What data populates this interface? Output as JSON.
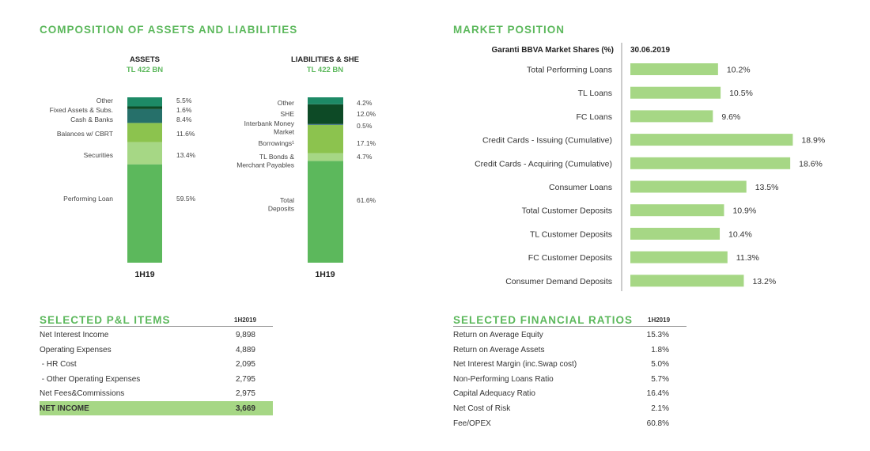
{
  "colors": {
    "accent_green": "#5cb85c",
    "light_green": "#a6d785",
    "mid_green": "#8cc34e",
    "dark_green": "#0d4a26",
    "teal": "#26706a",
    "sea_green": "#1d8a66",
    "steel": "#3a6f8a"
  },
  "titles": {
    "composition": "COMPOSITION OF ASSETS AND LIABILITIES",
    "market": "MARKET POSITION",
    "pl": "SELECTED P&L ITEMS",
    "ratios": "SELECTED FINANCIAL RATIOS"
  },
  "chart_data": [
    {
      "type": "bar",
      "stacked": true,
      "title": "ASSETS",
      "subtitle": "TL 422 BN",
      "categories": [
        "1H19"
      ],
      "series": [
        {
          "name": "Performing Loan",
          "values": [
            59.5
          ],
          "color": "#5cb85c"
        },
        {
          "name": "Securities",
          "values": [
            13.4
          ],
          "color": "#a6d785"
        },
        {
          "name": "Balances w/ CBRT",
          "values": [
            11.6
          ],
          "color": "#8cc34e"
        },
        {
          "name": "Cash & Banks",
          "values": [
            8.4
          ],
          "color": "#26706a"
        },
        {
          "name": "Fixed Assets & Subs.",
          "values": [
            1.6
          ],
          "color": "#0d4a26"
        },
        {
          "name": "Other",
          "values": [
            5.5
          ],
          "color": "#1d8a66"
        }
      ],
      "value_labels": [
        "59.5%",
        "13.4%",
        "11.6%",
        "8.4%",
        "1.6%",
        "5.5%"
      ]
    },
    {
      "type": "bar",
      "stacked": true,
      "title": "LIABILITIES & SHE",
      "subtitle": "TL 422 BN",
      "categories": [
        "1H19"
      ],
      "series": [
        {
          "name": "Total Deposits",
          "values": [
            61.6
          ],
          "color": "#5cb85c"
        },
        {
          "name": "TL Bonds & Merchant Payables",
          "values": [
            4.7
          ],
          "color": "#a6d785"
        },
        {
          "name": "Borrowings¹",
          "values": [
            17.1
          ],
          "color": "#8cc34e"
        },
        {
          "name": "Interbank Money Market",
          "values": [
            0.5
          ],
          "color": "#3a6f8a"
        },
        {
          "name": "SHE",
          "values": [
            12.0
          ],
          "color": "#0d4a26"
        },
        {
          "name": "Other",
          "values": [
            4.2
          ],
          "color": "#1d8a66"
        }
      ],
      "value_labels": [
        "61.6%",
        "4.7%",
        "17.1%",
        "0.5%",
        "12.0%",
        "4.2%"
      ]
    },
    {
      "type": "bar",
      "orientation": "horizontal",
      "title": "Garanti BBVA Market Shares (%)",
      "subtitle": "30.06.2019",
      "categories": [
        "Total Performing Loans",
        "TL Loans",
        "FC Loans",
        "Credit Cards - Issuing (Cumulative)",
        "Credit Cards - Acquiring (Cumulative)",
        "Consumer Loans",
        "Total Customer Deposits",
        "TL Customer Deposits",
        "FC Customer Deposits",
        "Consumer Demand Deposits"
      ],
      "values": [
        10.2,
        10.5,
        9.6,
        18.9,
        18.6,
        13.5,
        10.9,
        10.4,
        11.3,
        13.2
      ],
      "value_labels": [
        "10.2%",
        "10.5%",
        "9.6%",
        "18.9%",
        "18.6%",
        "13.5%",
        "10.9%",
        "10.4%",
        "11.3%",
        "13.2%"
      ],
      "xlim": [
        0,
        19.6
      ],
      "color": "#a6d785"
    }
  ],
  "pl": {
    "header": "1H2019",
    "rows": [
      {
        "label": "Net Interest Income",
        "value": "9,898"
      },
      {
        "label": "Operating Expenses",
        "value": "4,889"
      },
      {
        "label": " - HR Cost",
        "value": "2,095"
      },
      {
        "label": " - Other Operating Expenses",
        "value": "2,795"
      },
      {
        "label": "Net Fees&Commissions",
        "value": "2,975"
      },
      {
        "label": "NET INCOME",
        "value": "3,669",
        "highlight": true
      }
    ]
  },
  "ratios": {
    "header": "1H2019",
    "rows": [
      {
        "label": "Return on Average Equity",
        "value": "15.3%"
      },
      {
        "label": "Return on Average Assets",
        "value": "1.8%"
      },
      {
        "label": "Net Interest Margin (inc.Swap cost)",
        "value": "5.0%"
      },
      {
        "label": "Non-Performing Loans Ratio",
        "value": "5.7%"
      },
      {
        "label": "Capital Adequacy Ratio",
        "value": "16.4%"
      },
      {
        "label": "Net Cost of Risk",
        "value": "2.1%"
      },
      {
        "label": "Fee/OPEX",
        "value": "60.8%"
      }
    ]
  }
}
